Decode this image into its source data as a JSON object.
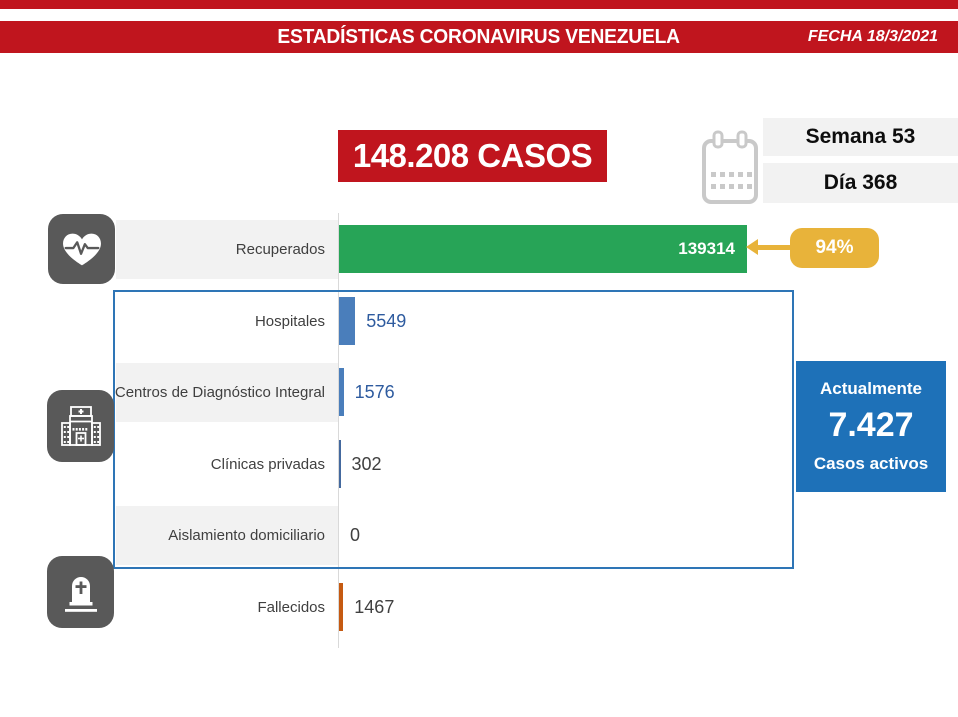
{
  "header": {
    "title": "ESTADÍSTICAS CORONAVIRUS VENEZUELA",
    "date": "FECHA 18/3/2021"
  },
  "totals": {
    "cases": "148.208 CASOS",
    "week": "Semana 53",
    "day": "Día 368"
  },
  "chart_data": {
    "type": "bar",
    "orientation": "horizontal",
    "title": "148.208 CASOS",
    "categories": [
      "Recuperados",
      "Hospitales",
      "Centros de Diagnóstico Integral",
      "Clínicas privadas",
      "Aislamiento domiciliario",
      "Fallecidos"
    ],
    "values": [
      139314,
      5549,
      1576,
      302,
      0,
      1467
    ],
    "value_labels": [
      "139314",
      "5549",
      "1576",
      "302",
      "0",
      "1467"
    ],
    "max_value": 139314,
    "xlim": [
      0,
      139314
    ],
    "gridlines": false,
    "legend": "none",
    "bar_colors": [
      "#27a457",
      "#4a7ebb",
      "#4a7ebb",
      "#44699e",
      "#4a7ebb",
      "#c55a11"
    ],
    "value_colors": [
      "#ffffff",
      "#2e5b9f",
      "#2e5b9f",
      "#404040",
      "#404040",
      "#404040"
    ]
  },
  "recovered_badge": {
    "label": "94%",
    "color": "#e8b33a"
  },
  "active_box": {
    "line1": "Actualmente",
    "value": "7.427",
    "line2": "Casos activos",
    "color": "#1e71b8"
  },
  "icons": {
    "recovered": "heart-pulse-icon",
    "group": "hospital-icon",
    "deceased": "tombstone-icon",
    "date": "calendar-icon"
  },
  "colors": {
    "red": "#c0151e",
    "green": "#27a457",
    "bar_blue": "#4a7ebb",
    "orange": "#c55a11",
    "yellow": "#e8b33a",
    "active_blue": "#1e71b8",
    "outline_blue": "#2e75b6",
    "band_gray": "#f2f2f2",
    "icon_gray": "#595959"
  }
}
